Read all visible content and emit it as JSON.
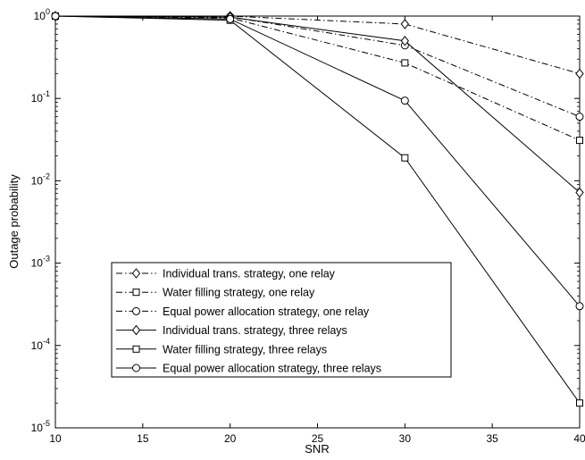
{
  "chart_data": {
    "type": "line",
    "title": "",
    "xlabel": "SNR",
    "ylabel": "Outage probability",
    "x": [
      10,
      20,
      30,
      40
    ],
    "xlim": [
      10,
      40
    ],
    "ylim": [
      1e-05,
      1
    ],
    "yscale": "log",
    "grid": false,
    "legend_position": "lower-left",
    "x_ticks": [
      "10",
      "15",
      "20",
      "25",
      "30",
      "35",
      "40"
    ],
    "y_ticks": [
      {
        "base": "10",
        "exp": "0"
      },
      {
        "base": "10",
        "exp": "-1"
      },
      {
        "base": "10",
        "exp": "-2"
      },
      {
        "base": "10",
        "exp": "-3"
      },
      {
        "base": "10",
        "exp": "-4"
      },
      {
        "base": "10",
        "exp": "-5"
      }
    ],
    "series": [
      {
        "name": "Individual trans. strategy, one relay",
        "marker": "diamond",
        "line": "dashdot",
        "values": [
          1.0,
          1.0,
          0.8,
          0.2
        ]
      },
      {
        "name": "Water filling strategy, one relay",
        "marker": "square",
        "line": "dashdot",
        "values": [
          1.0,
          0.95,
          0.27,
          0.031
        ]
      },
      {
        "name": "Equal power allocation strategy, one relay",
        "marker": "circle",
        "line": "dashdot",
        "values": [
          1.0,
          0.98,
          0.44,
          0.06
        ]
      },
      {
        "name": "Individual trans. strategy, three relays",
        "marker": "diamond",
        "line": "solid",
        "values": [
          1.0,
          0.97,
          0.5,
          0.0072
        ]
      },
      {
        "name": "Water filling strategy, three relays",
        "marker": "square",
        "line": "solid",
        "values": [
          1.0,
          0.89,
          0.019,
          2e-05
        ]
      },
      {
        "name": "Equal power allocation strategy, three relays",
        "marker": "circle",
        "line": "solid",
        "values": [
          1.0,
          0.92,
          0.094,
          0.0003
        ]
      }
    ]
  }
}
